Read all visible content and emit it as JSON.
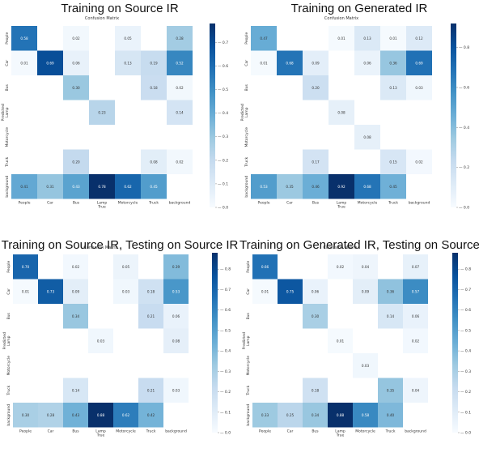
{
  "colors": {
    "scale_low": "#f7fbff",
    "scale_high": "#08306b",
    "cell_text_dark": "#333333",
    "cell_text_light": "#ffffff"
  },
  "chart_data": [
    {
      "type": "heatmap",
      "title": "Training on Source IR",
      "subtitle": "Confusion Matrix",
      "xlabel": "True",
      "ylabel": "Predicted",
      "x_categories": [
        "People",
        "Car",
        "Bus",
        "Lamp",
        "Motorcycle",
        "Truck",
        "background"
      ],
      "y_categories": [
        "People",
        "Car",
        "Bus",
        "Lamp",
        "Motorcycle",
        "Truck",
        "background"
      ],
      "colorbar_ticks": [
        "0.0",
        "0.1",
        "0.2",
        "0.3",
        "0.4",
        "0.5",
        "0.6",
        "0.7"
      ],
      "vmin": 0,
      "vmax": 0.78,
      "cells": [
        [
          0.58,
          null,
          0.02,
          null,
          0.05,
          null,
          0.28
        ],
        [
          0.01,
          0.69,
          0.06,
          null,
          0.13,
          0.19,
          0.52
        ],
        [
          null,
          null,
          0.3,
          null,
          null,
          0.18,
          0.02
        ],
        [
          null,
          null,
          null,
          0.23,
          null,
          null,
          0.14
        ],
        [
          null,
          null,
          null,
          null,
          null,
          null,
          null
        ],
        [
          null,
          null,
          0.2,
          null,
          null,
          0.08,
          0.02
        ],
        [
          0.41,
          0.31,
          0.43,
          0.78,
          0.62,
          0.45,
          null
        ]
      ]
    },
    {
      "type": "heatmap",
      "title": "Training on Generated IR",
      "subtitle": "Confusion Matrix",
      "xlabel": "True",
      "ylabel": "Predicted",
      "x_categories": [
        "People",
        "Car",
        "Bus",
        "Lamp",
        "Motorcycle",
        "Truck",
        "background"
      ],
      "y_categories": [
        "People",
        "Car",
        "Bus",
        "Lamp",
        "Motorcycle",
        "Truck",
        "background"
      ],
      "colorbar_ticks": [
        "0.0",
        "0.2",
        "0.4",
        "0.6",
        "0.8"
      ],
      "vmin": 0,
      "vmax": 0.92,
      "cells": [
        [
          0.47,
          null,
          null,
          0.01,
          0.13,
          0.01,
          0.12
        ],
        [
          0.01,
          0.68,
          0.09,
          null,
          0.06,
          0.36,
          0.69
        ],
        [
          null,
          null,
          0.2,
          null,
          null,
          0.13,
          0.03
        ],
        [
          null,
          null,
          null,
          0.08,
          null,
          null,
          null
        ],
        [
          null,
          null,
          null,
          null,
          0.08,
          null,
          null
        ],
        [
          null,
          null,
          0.17,
          null,
          null,
          0.15,
          0.02
        ],
        [
          0.53,
          0.35,
          0.46,
          0.92,
          0.68,
          0.45,
          null
        ]
      ]
    },
    {
      "type": "heatmap",
      "title": "Training on Source IR, Testing on Source IR",
      "subtitle": "Confusion Matrix",
      "xlabel": "True",
      "ylabel": "Predicted",
      "x_categories": [
        "People",
        "Car",
        "Bus",
        "Lamp",
        "Motorcycle",
        "Truck",
        "background"
      ],
      "y_categories": [
        "People",
        "Car",
        "Bus",
        "Lamp",
        "Motorcycle",
        "Truck",
        "background"
      ],
      "colorbar_ticks": [
        "0.0",
        "0.1",
        "0.2",
        "0.3",
        "0.4",
        "0.5",
        "0.6",
        "0.7",
        "0.8"
      ],
      "vmin": 0,
      "vmax": 0.88,
      "cells": [
        [
          0.7,
          null,
          0.02,
          null,
          0.05,
          null,
          0.39
        ],
        [
          0.01,
          0.73,
          0.09,
          null,
          0.03,
          0.18,
          0.53
        ],
        [
          null,
          null,
          0.34,
          null,
          null,
          0.21,
          0.06
        ],
        [
          null,
          null,
          null,
          0.03,
          null,
          null,
          0.08
        ],
        [
          null,
          null,
          null,
          null,
          null,
          null,
          null
        ],
        [
          null,
          null,
          0.14,
          null,
          null,
          0.21,
          0.03
        ],
        [
          0.3,
          0.28,
          0.43,
          0.88,
          0.62,
          0.42,
          null
        ]
      ]
    },
    {
      "type": "heatmap",
      "title": "Training on Generated IR, Testing on Source IR",
      "subtitle": "Confusion Matrix",
      "xlabel": "True",
      "ylabel": "Predicted",
      "x_categories": [
        "People",
        "Car",
        "Bus",
        "Lamp",
        "Motorcycle",
        "Truck",
        "background"
      ],
      "y_categories": [
        "People",
        "Car",
        "Bus",
        "Lamp",
        "Motorcycle",
        "Truck",
        "background"
      ],
      "colorbar_ticks": [
        "0.0",
        "0.1",
        "0.2",
        "0.3",
        "0.4",
        "0.5",
        "0.6",
        "0.7",
        "0.8"
      ],
      "vmin": 0,
      "vmax": 0.88,
      "cells": [
        [
          0.66,
          null,
          null,
          0.02,
          0.04,
          null,
          0.07
        ],
        [
          0.01,
          0.75,
          0.06,
          null,
          0.09,
          0.36,
          0.57
        ],
        [
          null,
          null,
          0.3,
          null,
          null,
          0.14,
          0.06
        ],
        [
          null,
          null,
          null,
          0.01,
          null,
          null,
          0.02
        ],
        [
          null,
          null,
          null,
          null,
          0.03,
          null,
          null
        ],
        [
          null,
          null,
          0.18,
          null,
          null,
          0.35,
          0.04
        ],
        [
          0.33,
          0.25,
          0.34,
          0.88,
          0.58,
          0.4,
          null
        ]
      ]
    }
  ]
}
